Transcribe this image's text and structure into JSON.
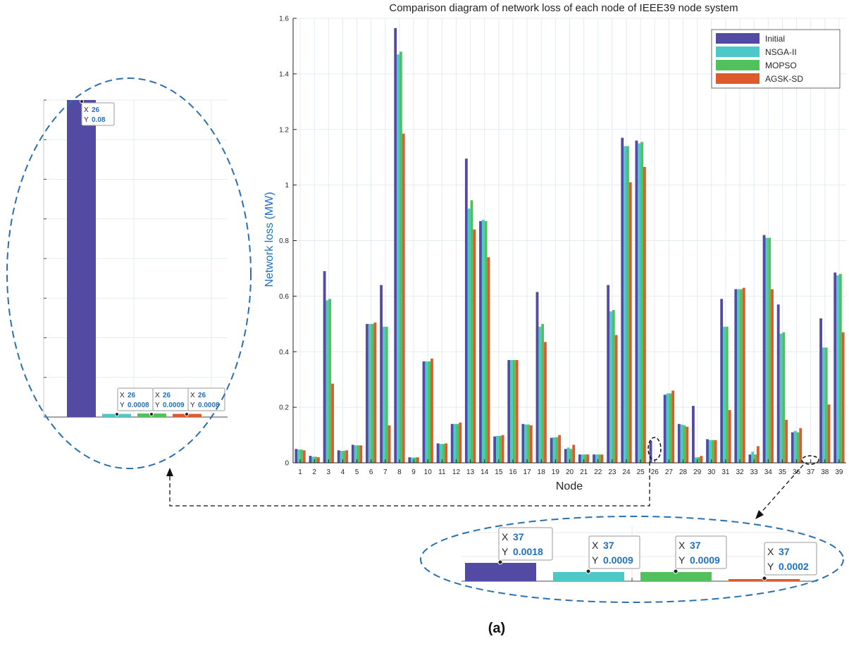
{
  "chart_data": {
    "type": "bar",
    "title": "Comparison diagram of network loss of each node of IEEE39 node system",
    "xlabel": "Node",
    "ylabel": "Network loss (MW)",
    "ylim": [
      0,
      1.6
    ],
    "yticks": [
      0,
      0.2,
      0.4,
      0.6,
      0.8,
      1,
      1.2,
      1.4,
      1.6
    ],
    "grid": true,
    "legend_position": "top-right",
    "categories": [
      "1",
      "2",
      "3",
      "4",
      "5",
      "6",
      "7",
      "8",
      "9",
      "10",
      "11",
      "12",
      "13",
      "14",
      "15",
      "16",
      "17",
      "18",
      "19",
      "20",
      "21",
      "22",
      "23",
      "24",
      "25",
      "26",
      "27",
      "28",
      "29",
      "30",
      "31",
      "32",
      "33",
      "34",
      "35",
      "36",
      "37",
      "38",
      "39"
    ],
    "series": [
      {
        "name": "Initial",
        "color": "#534ba3",
        "values": [
          0.05,
          0.025,
          0.69,
          0.045,
          0.065,
          0.5,
          0.64,
          1.565,
          0.02,
          0.365,
          0.07,
          0.14,
          1.095,
          0.87,
          0.095,
          0.37,
          0.14,
          0.615,
          0.09,
          0.05,
          0.03,
          0.03,
          0.64,
          1.17,
          1.16,
          0.08,
          0.245,
          0.14,
          0.205,
          0.085,
          0.59,
          0.625,
          0.03,
          0.82,
          0.57,
          0.11,
          0.0018,
          0.52,
          0.685
        ]
      },
      {
        "name": "NSGA-II",
        "color": "#4dc8c6",
        "values": [
          0.048,
          0.022,
          0.585,
          0.043,
          0.063,
          0.5,
          0.49,
          1.47,
          0.019,
          0.365,
          0.068,
          0.14,
          0.915,
          0.875,
          0.097,
          0.37,
          0.138,
          0.49,
          0.092,
          0.055,
          0.03,
          0.03,
          0.545,
          1.14,
          1.15,
          0.0008,
          0.25,
          0.138,
          0.02,
          0.082,
          0.49,
          0.625,
          0.04,
          0.81,
          0.465,
          0.115,
          0.0009,
          0.415,
          0.675
        ]
      },
      {
        "name": "MOPSO",
        "color": "#50c15c",
        "values": [
          0.048,
          0.022,
          0.59,
          0.043,
          0.063,
          0.5,
          0.49,
          1.48,
          0.019,
          0.365,
          0.068,
          0.14,
          0.945,
          0.87,
          0.097,
          0.37,
          0.138,
          0.5,
          0.092,
          0.05,
          0.03,
          0.03,
          0.55,
          1.14,
          1.155,
          0.0009,
          0.25,
          0.135,
          0.02,
          0.082,
          0.49,
          0.625,
          0.03,
          0.81,
          0.47,
          0.11,
          0.0009,
          0.415,
          0.68
        ]
      },
      {
        "name": "AGSK-SD",
        "color": "#dc5a2b",
        "values": [
          0.045,
          0.02,
          0.285,
          0.045,
          0.063,
          0.505,
          0.135,
          1.185,
          0.02,
          0.375,
          0.07,
          0.145,
          0.84,
          0.74,
          0.1,
          0.37,
          0.135,
          0.435,
          0.1,
          0.065,
          0.03,
          0.03,
          0.46,
          1.01,
          1.065,
          0.0008,
          0.26,
          0.13,
          0.025,
          0.082,
          0.19,
          0.63,
          0.06,
          0.625,
          0.155,
          0.125,
          0.0002,
          0.21,
          0.47
        ]
      }
    ],
    "zoom_node26": {
      "label": "26",
      "points": [
        {
          "series": "Initial",
          "x": "26",
          "y": "0.08",
          "value": 0.08
        },
        {
          "series": "NSGA-II",
          "x": "26",
          "y": "0.0008",
          "value": 0.0008
        },
        {
          "series": "MOPSO",
          "x": "26",
          "y": "0.0009",
          "value": 0.0009
        },
        {
          "series": "AGSK-SD",
          "x": "26",
          "y": "0.0008",
          "value": 0.0008
        }
      ]
    },
    "zoom_node37": {
      "label": "37",
      "points": [
        {
          "series": "Initial",
          "x": "37",
          "y": "0.0018",
          "value": 0.0018
        },
        {
          "series": "NSGA-II",
          "x": "37",
          "y": "0.0009",
          "value": 0.0009
        },
        {
          "series": "MOPSO",
          "x": "37",
          "y": "0.0009",
          "value": 0.0009
        },
        {
          "series": "AGSK-SD",
          "x": "37",
          "y": "0.0002",
          "value": 0.0002
        }
      ]
    },
    "tooltip_x_label": "X",
    "tooltip_y_label": "Y"
  },
  "caption": "(a)",
  "colors": {
    "axis": "#262626",
    "grid": "#e3ebf2",
    "ylabel": "#1f6fc2",
    "ellipse": "#2a6fb0",
    "ellipse_small": "#111111"
  }
}
